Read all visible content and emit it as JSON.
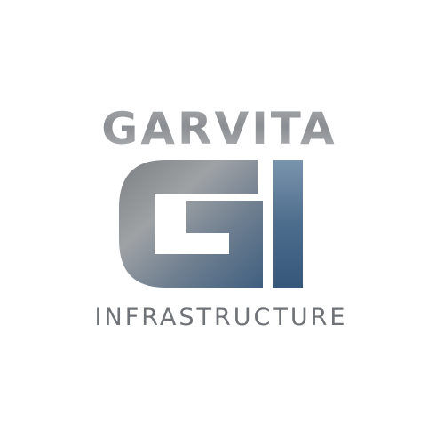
{
  "logo": {
    "brand_name": "GARVITA",
    "monogram": "GI",
    "tagline": "INFRASTRUCTURE",
    "colors": {
      "background": "#ffffff",
      "silver_light": "#c9cbce",
      "silver_mid": "#8d9196",
      "silver_dark": "#65686c",
      "blue_steel": "#4d6d8d",
      "blue_dark": "#3a5878",
      "tagline_gray": "#6f7276"
    }
  }
}
